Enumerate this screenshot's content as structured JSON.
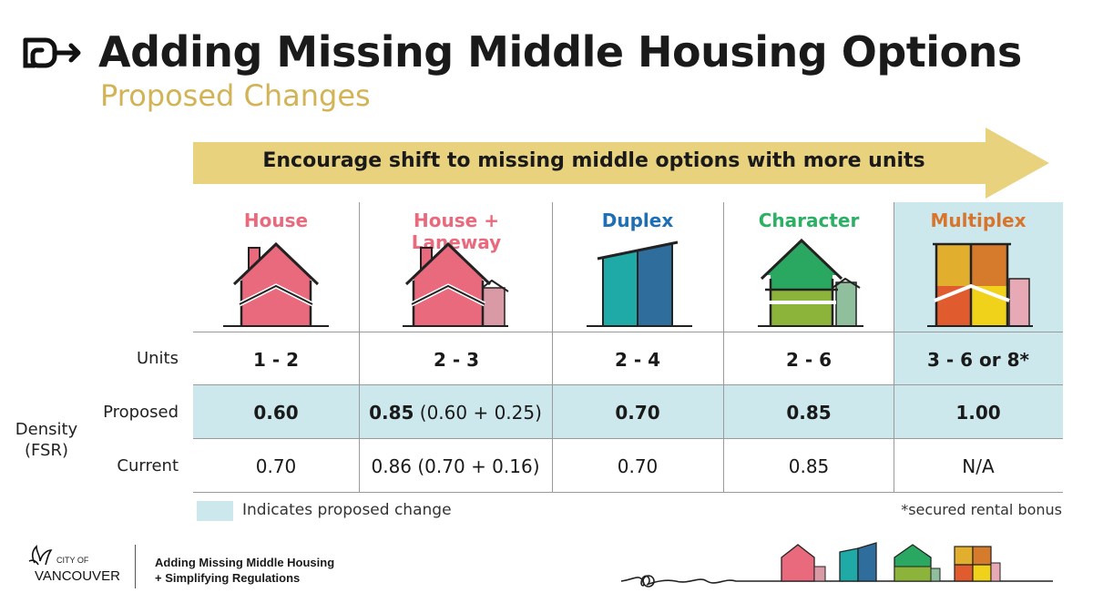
{
  "header": {
    "title": "Adding Missing Middle Housing Options",
    "subtitle": "Proposed Changes"
  },
  "arrow": {
    "label": "Encourage shift to missing middle options with more units"
  },
  "columns": [
    {
      "name": "House",
      "color": "#e96a7c",
      "units": "1 - 2",
      "proposed_bold": "0.60",
      "proposed_extra": "",
      "current": "0.70"
    },
    {
      "name": "House + Laneway",
      "color": "#e96a7c",
      "units": "2 - 3",
      "proposed_bold": "0.85",
      "proposed_extra": " (0.60 + 0.25)",
      "current": "0.86 (0.70 + 0.16)"
    },
    {
      "name": "Duplex",
      "color": "#1f6fb5",
      "units": "2 - 4",
      "proposed_bold": "0.70",
      "proposed_extra": "",
      "current": "0.70"
    },
    {
      "name": "Character",
      "color": "#2bb064",
      "units": "2 - 6",
      "proposed_bold": "0.85",
      "proposed_extra": "",
      "current": "0.85"
    },
    {
      "name": "Multiplex",
      "color": "#d8742c",
      "units": "3 - 6 or 8*",
      "proposed_bold": "1.00",
      "proposed_extra": "",
      "current": "N/A"
    }
  ],
  "row_labels": {
    "units": "Units",
    "proposed": "Proposed",
    "current": "Current",
    "density": "Density",
    "fsr": "(FSR)"
  },
  "legend": {
    "text": "Indicates proposed change",
    "swatch_color": "#cde8ec"
  },
  "footnote": "*secured rental bonus",
  "footer": {
    "city_small": "CITY OF",
    "city_big": "VANCOUVER",
    "title_line1": "Adding Missing Middle Housing",
    "title_line2": "+ Simplifying Regulations"
  },
  "colors": {
    "accent_gold": "#d2b356",
    "arrow_fill": "#e8d27e",
    "highlight": "#cde8ec"
  }
}
